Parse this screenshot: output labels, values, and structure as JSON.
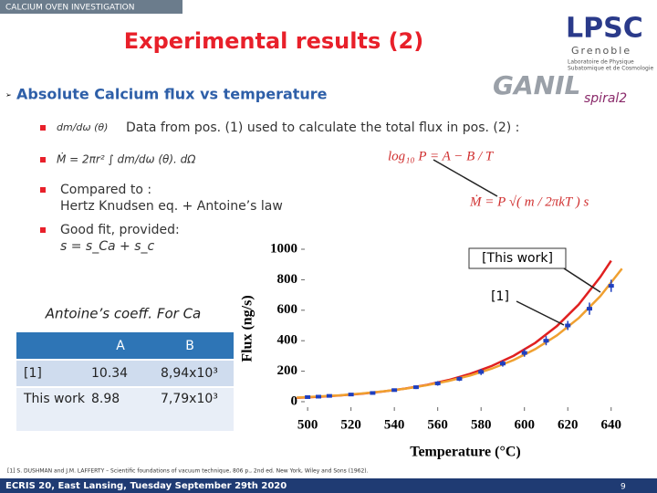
{
  "header": {
    "banner": "CALCIUM OVEN INVESTIGATION",
    "title": "Experimental results (2)"
  },
  "logos": {
    "lpsc": "LPSC",
    "lpsc_city": "Grenoble",
    "lpsc_lab": [
      "Laboratoire de Physique",
      "Subatomique et de Cosmologie"
    ],
    "ganil": "GANIL",
    "spiral": "spiral2"
  },
  "section": "Absolute Calcium flux vs temperature",
  "bullets": [
    {
      "formula": "dm/dω (θ)",
      "text": "Data from pos. (1) used to calculate the total flux in pos. (2) :"
    },
    {
      "formula": "Ṁ = 2πr² ∫ dm/dω (θ). dΩ"
    },
    {
      "text": "Compared to :",
      "sub": "Hertz Knudsen eq. + Antoine’s law"
    },
    {
      "text": "Good fit, provided:",
      "sub": "s = s_Ca + s_c"
    }
  ],
  "equations": [
    "log₁₀ P = A − B / T",
    "Ṁ = P √( m / 2πkT ) s"
  ],
  "table": {
    "caption": "Antoine’s coeff. For Ca",
    "columns": [
      "A",
      "B"
    ],
    "rows": [
      [
        "[1]",
        "10.34",
        "8,94x10³"
      ],
      [
        "This work",
        "8.98",
        "7,79x10³"
      ]
    ]
  },
  "chart_data": {
    "type": "scatter",
    "xlabel": "Temperature (°C)",
    "ylabel": "Flux (ng/s)",
    "xlim": [
      497,
      646
    ],
    "ylim": [
      -60,
      1030
    ],
    "xticks": [
      500,
      520,
      540,
      560,
      580,
      600,
      620,
      640
    ],
    "yticks": [
      0,
      200,
      400,
      600,
      800,
      1000
    ],
    "annotations": [
      "[This work]",
      "[1]"
    ],
    "series": [
      {
        "name": "data",
        "type": "scatter",
        "color": "#1f3fbf",
        "x": [
          500,
          505,
          510,
          520,
          530,
          540,
          550,
          560,
          570,
          580,
          590,
          600,
          610,
          620,
          630,
          640
        ],
        "values": [
          30,
          33,
          38,
          47,
          57,
          76,
          95,
          120,
          150,
          195,
          250,
          320,
          400,
          500,
          610,
          760
        ],
        "errors": [
          10,
          10,
          10,
          10,
          10,
          10,
          12,
          15,
          15,
          20,
          20,
          25,
          30,
          30,
          40,
          40
        ]
      },
      {
        "name": "This work",
        "type": "line",
        "color": "#e02020",
        "x": [
          495,
          505,
          515,
          525,
          535,
          545,
          555,
          565,
          575,
          585,
          595,
          605,
          615,
          625,
          635,
          640
        ],
        "values": [
          25,
          32,
          41,
          52,
          67,
          86,
          110,
          142,
          183,
          235,
          301,
          386,
          496,
          637,
          818,
          925
        ]
      },
      {
        "name": "[1]",
        "type": "line",
        "color": "#f0a030",
        "x": [
          495,
          505,
          515,
          525,
          535,
          545,
          555,
          565,
          575,
          585,
          595,
          605,
          615,
          625,
          635,
          645
        ],
        "values": [
          27,
          34,
          42,
          54,
          68,
          85,
          108,
          136,
          172,
          217,
          273,
          345,
          435,
          548,
          692,
          873
        ]
      }
    ]
  },
  "reference": "[1] S. DUSHMAN and J.M. LAFFERTY – Scientific foundations of vacuum technique, 806 p., 2nd ed. New York, Wiley and Sons (1962).",
  "footer": {
    "event": "ECRIS 20, East Lansing, Tuesday September 29th 2020",
    "page": "9"
  }
}
